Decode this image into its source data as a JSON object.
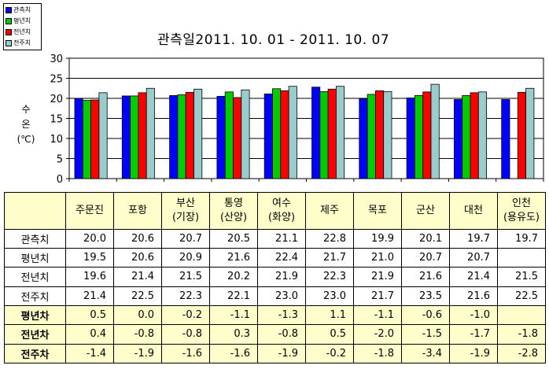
{
  "chart_data": {
    "type": "bar",
    "title": "관측일2011. 10. 01 -  2011. 10. 07",
    "ylabel": [
      "수",
      "온",
      "(℃)"
    ],
    "ylim": [
      0,
      30
    ],
    "yticks": [
      0,
      5,
      10,
      15,
      20,
      25,
      30
    ],
    "grid": true,
    "legend": "top-left",
    "categories": [
      {
        "name": "주문진"
      },
      {
        "name": "포항"
      },
      {
        "name": "부산",
        "sub": "(기장)"
      },
      {
        "name": "통영",
        "sub": "(산양)"
      },
      {
        "name": "여수",
        "sub": "(화양)"
      },
      {
        "name": "제주"
      },
      {
        "name": "목포"
      },
      {
        "name": "군산"
      },
      {
        "name": "대천"
      },
      {
        "name": "인천",
        "sub": "(용유도)"
      }
    ],
    "series": [
      {
        "name": "관측치",
        "color": "#0000ff",
        "values": [
          20.0,
          20.6,
          20.7,
          20.5,
          21.1,
          22.8,
          19.9,
          20.1,
          19.7,
          19.7
        ]
      },
      {
        "name": "평년치",
        "color": "#00cc00",
        "values": [
          19.5,
          20.6,
          20.9,
          21.6,
          22.4,
          21.7,
          21.0,
          20.7,
          20.7,
          null
        ]
      },
      {
        "name": "전년치",
        "color": "#ff0000",
        "values": [
          19.6,
          21.4,
          21.5,
          20.2,
          21.9,
          22.3,
          21.9,
          21.6,
          21.4,
          21.5
        ]
      },
      {
        "name": "전주치",
        "color": "#99cccc",
        "values": [
          21.4,
          22.5,
          22.3,
          22.1,
          23.0,
          23.0,
          21.7,
          23.5,
          21.6,
          22.5
        ]
      }
    ],
    "display_values": [
      [
        "20.0",
        "20.6",
        "20.7",
        "20.5",
        "21.1",
        "22.8",
        "19.9",
        "20.1",
        "19.7",
        "19.7"
      ],
      [
        "19.5",
        "20.6",
        "20.9",
        "21.6",
        "22.4",
        "21.7",
        "21.0",
        "20.7",
        "20.7",
        ""
      ],
      [
        "19.6",
        "21.4",
        "21.5",
        "20.2",
        "21.9",
        "22.3",
        "21.9",
        "21.6",
        "21.4",
        "21.5"
      ],
      [
        "21.4",
        "22.5",
        "22.3",
        "22.1",
        "23.0",
        "23.0",
        "21.7",
        "23.5",
        "21.6",
        "22.5"
      ]
    ],
    "difference_rows": [
      {
        "name": "평년차",
        "values": [
          "0.5",
          "0.0",
          "-0.2",
          "-1.1",
          "-1.3",
          "1.1",
          "-1.1",
          "-0.6",
          "-1.0",
          ""
        ]
      },
      {
        "name": "전년차",
        "values": [
          "0.4",
          "-0.8",
          "-0.8",
          "0.3",
          "-0.8",
          "0.5",
          "-2.0",
          "-1.5",
          "-1.7",
          "-1.8"
        ]
      },
      {
        "name": "전주차",
        "values": [
          "-1.4",
          "-1.9",
          "-1.6",
          "-1.6",
          "-1.9",
          "-0.2",
          "-1.8",
          "-3.4",
          "-1.9",
          "-2.8"
        ]
      }
    ]
  }
}
